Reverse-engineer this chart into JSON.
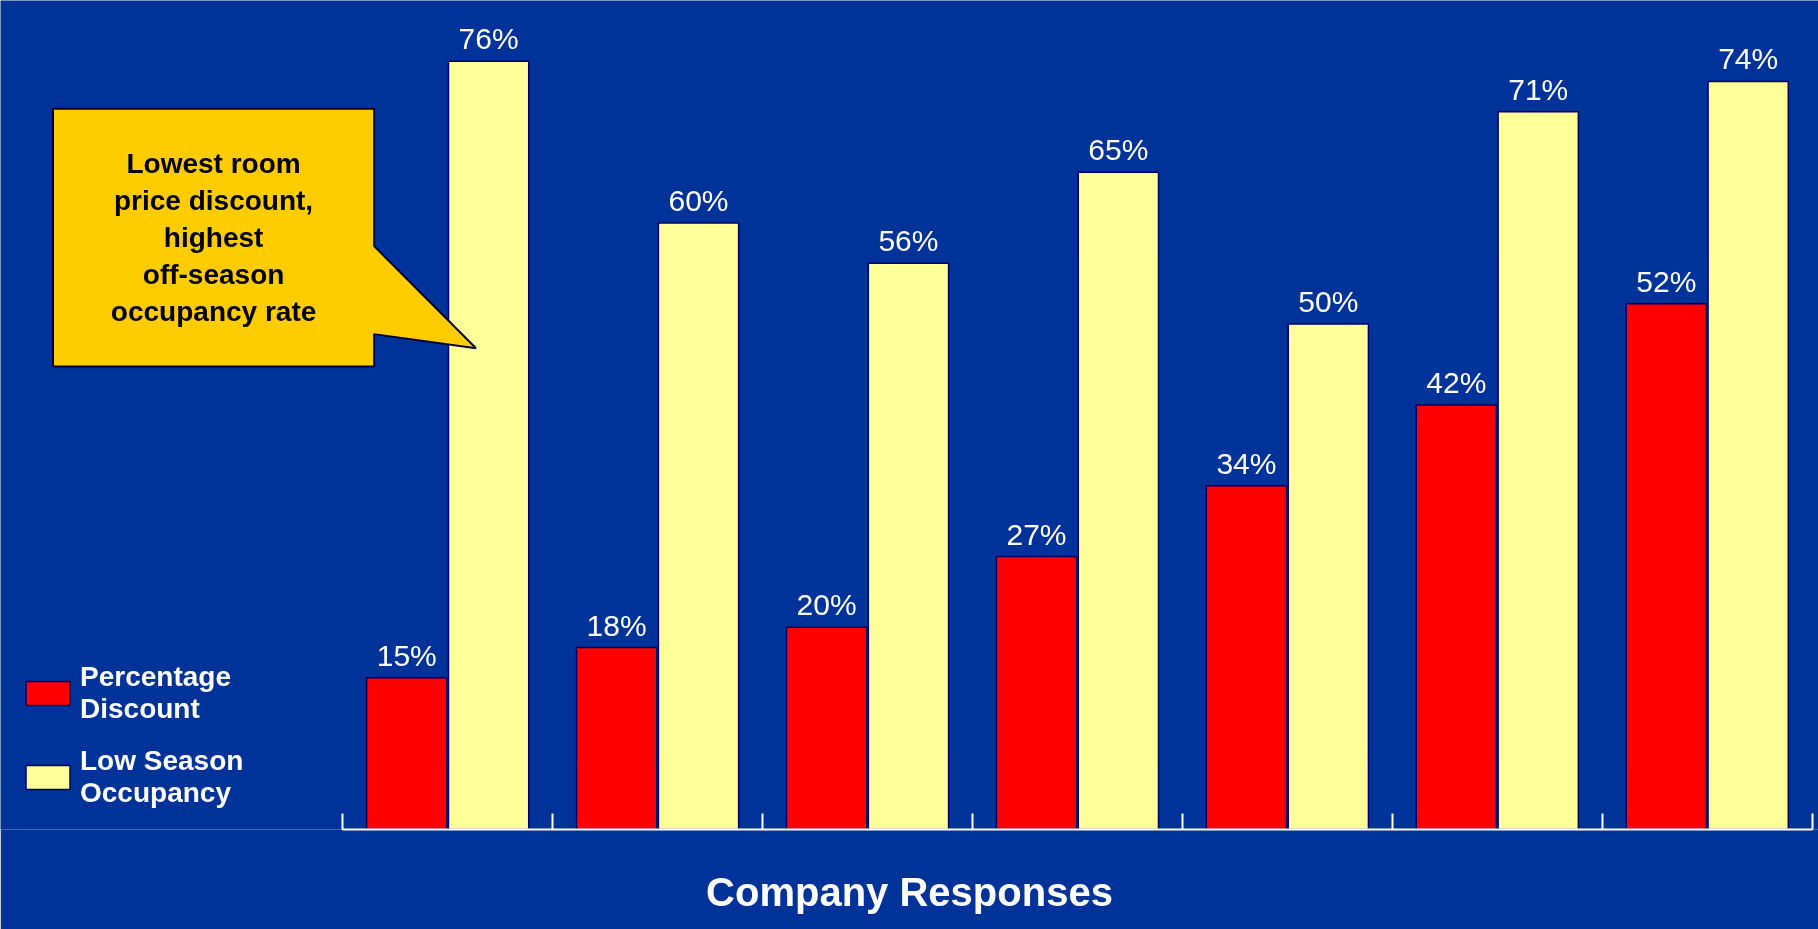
{
  "chart_data": {
    "type": "bar",
    "xlabel": "Company Responses",
    "categories": [
      null,
      null,
      null,
      null,
      null,
      null,
      null
    ],
    "series": [
      {
        "name": "Percentage Discount",
        "color": "#ff0000",
        "values": [
          15,
          18,
          20,
          27,
          34,
          42,
          52
        ],
        "value_labels": [
          "15%",
          "18%",
          "20%",
          "27%",
          "34%",
          "42%",
          "52%"
        ]
      },
      {
        "name": "Low Season Occupancy",
        "color": "#ffff99",
        "values": [
          76,
          60,
          56,
          65,
          50,
          71,
          74
        ],
        "value_labels": [
          "76%",
          "60%",
          "56%",
          "65%",
          "50%",
          "71%",
          "74%"
        ]
      }
    ],
    "annotations": [
      "Lowest room price discount, highest off-season occupancy rate"
    ],
    "legend": "bottom left",
    "tick_labels": false
  }
}
